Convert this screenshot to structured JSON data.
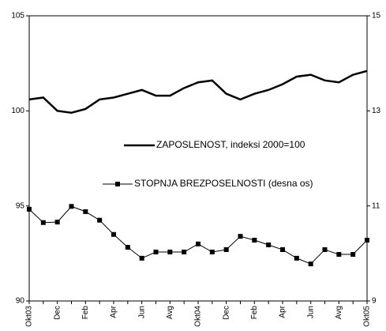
{
  "chart_data": {
    "type": "line",
    "categories": [
      "Okt03",
      null,
      "Dec",
      null,
      "Feb",
      null,
      "Apr",
      null,
      "Jun",
      null,
      "Avg",
      null,
      "Okt04",
      null,
      "Dec",
      null,
      "Feb",
      null,
      "Apr",
      null,
      "Jun",
      null,
      "Avg",
      null,
      "Okt05"
    ],
    "series": [
      {
        "name": "ZAPOSLENOST, indeksi 2000=100",
        "color": "#000000",
        "axis": "y",
        "values": [
          100.6,
          100.7,
          100.0,
          99.9,
          100.1,
          100.6,
          100.7,
          100.9,
          101.1,
          100.8,
          100.8,
          101.2,
          101.5,
          101.6,
          100.9,
          100.6,
          100.9,
          101.1,
          101.4,
          101.8,
          101.9,
          101.6,
          101.5,
          101.9,
          102.1
        ]
      },
      {
        "name": "STOPNJA BREZPOSELNOSTI (desna os)",
        "color": "#000000",
        "axis": "y2",
        "marker": "square",
        "values": [
          10.93,
          10.65,
          10.66,
          10.99,
          10.88,
          10.7,
          10.4,
          10.13,
          9.9,
          10.03,
          10.03,
          10.03,
          10.2,
          10.03,
          10.08,
          10.36,
          10.28,
          10.18,
          10.08,
          9.9,
          9.78,
          10.08,
          9.98,
          9.98,
          10.28
        ]
      }
    ],
    "ylim": [
      90,
      105
    ],
    "yticks": [
      90,
      95,
      100,
      105
    ],
    "y2lim": [
      9,
      15
    ],
    "y2ticks": [
      9,
      11,
      13,
      15
    ]
  }
}
